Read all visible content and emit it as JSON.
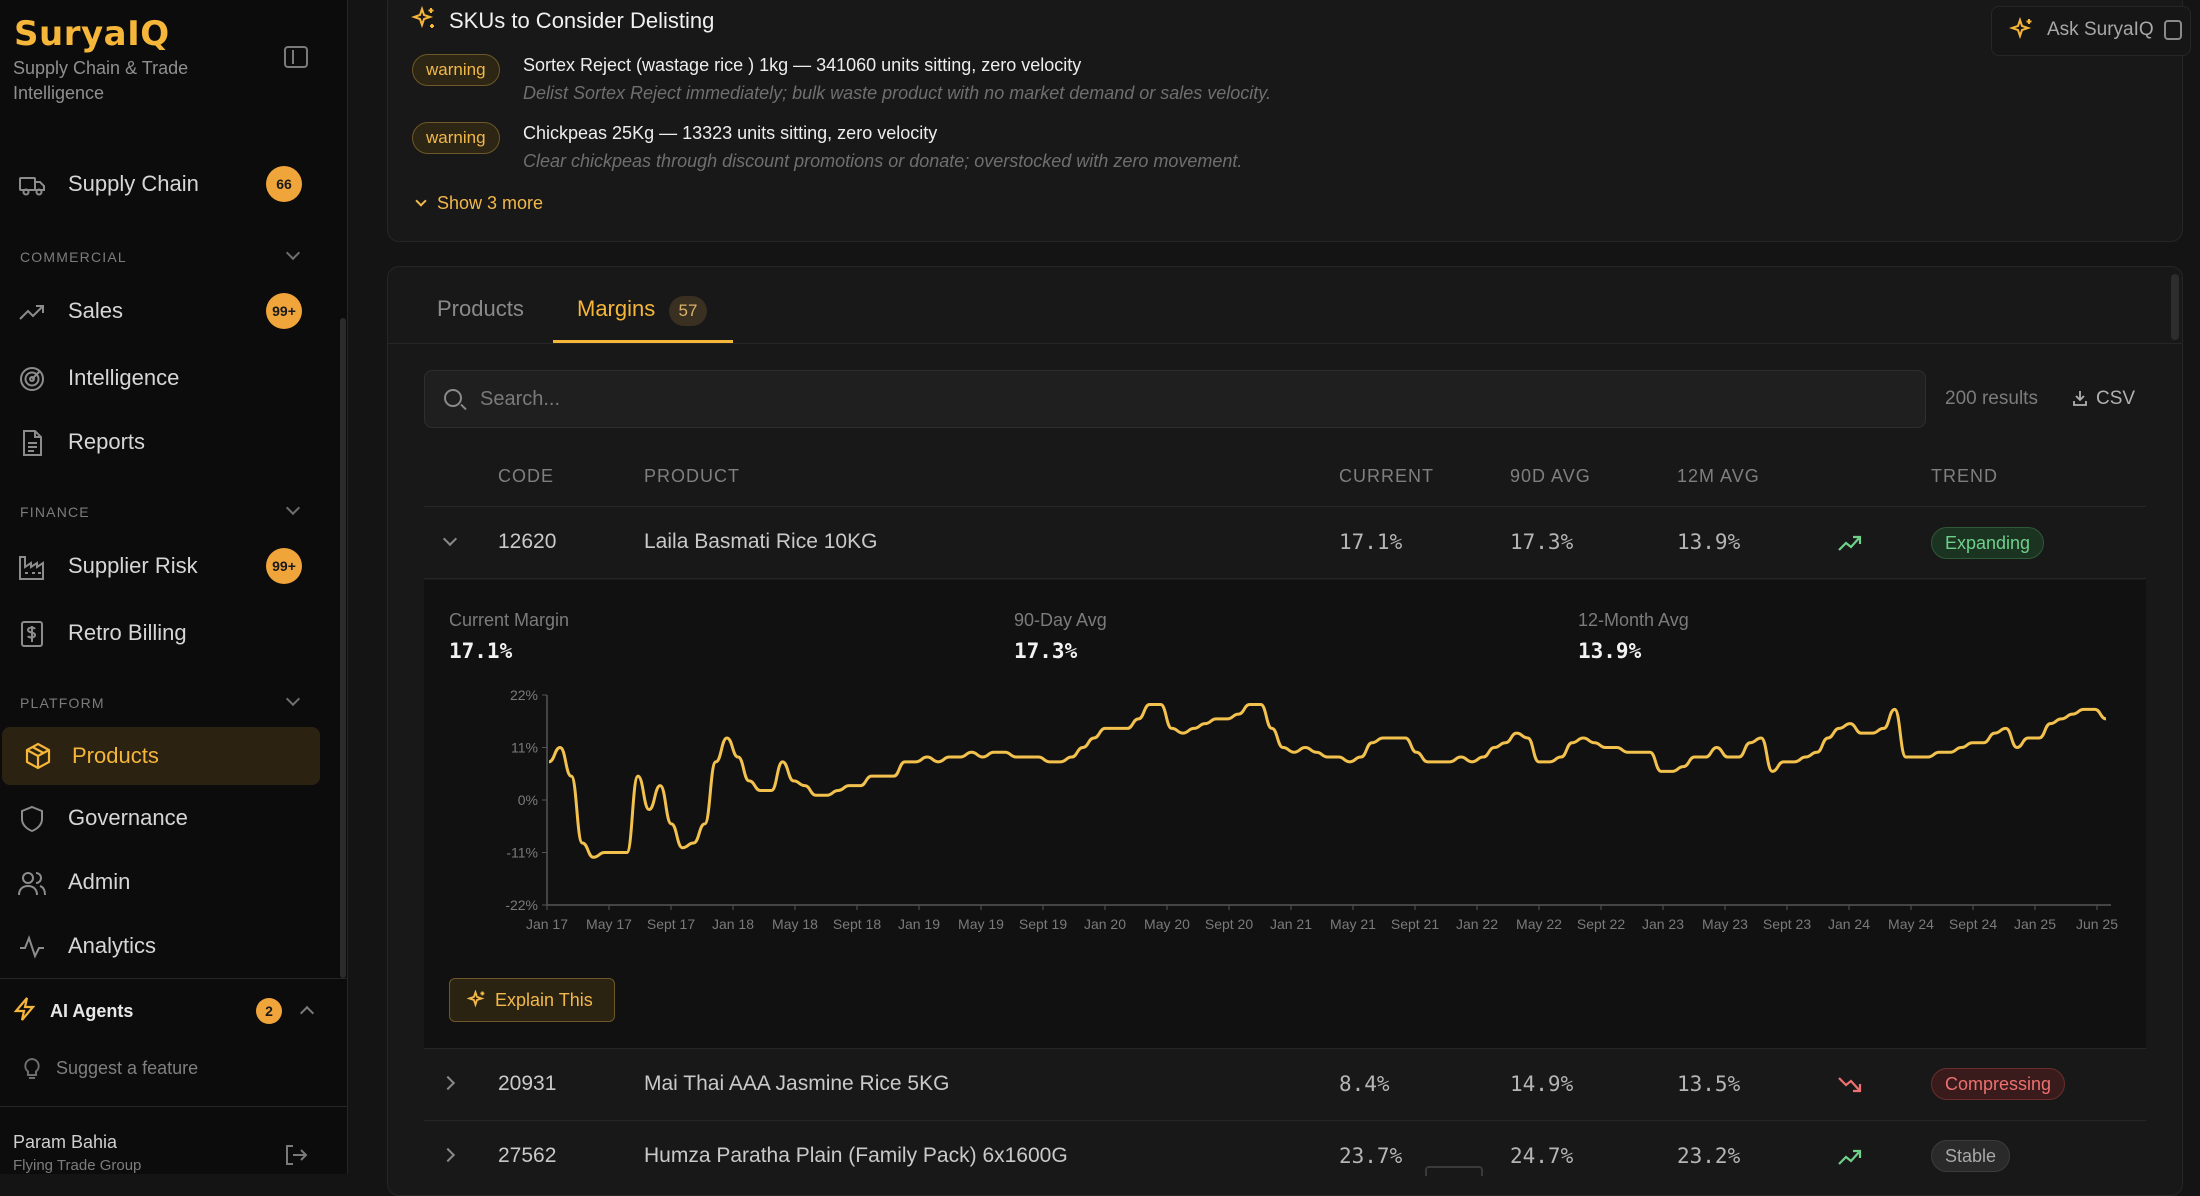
{
  "sidebar": {
    "logo": "SuryaIQ",
    "tagline": "Supply Chain & Trade Intelligence",
    "items": [
      {
        "label": "Supply Chain",
        "badge": "66",
        "icon": "truck-icon"
      },
      {
        "label": "Sales",
        "badge": "99+",
        "icon": "trending-up-icon"
      },
      {
        "label": "Intelligence",
        "icon": "radar-icon"
      },
      {
        "label": "Reports",
        "icon": "document-icon"
      },
      {
        "label": "Supplier Risk",
        "badge": "99+",
        "icon": "factory-icon"
      },
      {
        "label": "Retro Billing",
        "icon": "receipt-dollar-icon"
      },
      {
        "label": "Products",
        "icon": "package-icon"
      },
      {
        "label": "Governance",
        "icon": "shield-icon"
      },
      {
        "label": "Admin",
        "icon": "users-icon"
      },
      {
        "label": "Analytics",
        "icon": "activity-icon"
      }
    ],
    "sections": {
      "commercial": "COMMERCIAL",
      "finance": "FINANCE",
      "platform": "PLATFORM"
    },
    "agents": {
      "label": "AI Agents",
      "count": "2"
    },
    "suggest": "Suggest a feature",
    "user": {
      "name": "Param Bahia",
      "org": "Flying Trade Group"
    }
  },
  "delisting": {
    "title": "SKUs to Consider Delisting",
    "items": [
      {
        "badge": "warning",
        "title": "Sortex Reject (wastage rice ) 1kg — 341060 units sitting, zero velocity",
        "sub": "Delist Sortex Reject immediately; bulk waste product with no market demand or sales velocity."
      },
      {
        "badge": "warning",
        "title": "Chickpeas 25Kg — 13323 units sitting, zero velocity",
        "sub": "Clear chickpeas through discount promotions or donate; overstocked with zero movement."
      }
    ],
    "show_more": "Show 3 more"
  },
  "ask": {
    "label": "Ask SuryaIQ"
  },
  "tabs": {
    "products": "Products",
    "margins": "Margins",
    "margins_count": "57"
  },
  "search": {
    "placeholder": "Search...",
    "results": "200 results",
    "csv": "CSV"
  },
  "table": {
    "headers": {
      "code": "CODE",
      "product": "PRODUCT",
      "current": "CURRENT",
      "avg90": "90D AVG",
      "avg12": "12M AVG",
      "trend": "TREND"
    },
    "rows": [
      {
        "code": "12620",
        "product": "Laila Basmati Rice 10KG",
        "current": "17.1%",
        "avg90": "17.3%",
        "avg12": "13.9%",
        "trend": "Expanding"
      },
      {
        "code": "20931",
        "product": "Mai Thai AAA Jasmine Rice 5KG",
        "current": "8.4%",
        "avg90": "14.9%",
        "avg12": "13.5%",
        "trend": "Compressing"
      },
      {
        "code": "27562",
        "product": "Humza Paratha Plain (Family Pack) 6x1600G",
        "current": "23.7%",
        "avg90": "24.7%",
        "avg12": "23.2%",
        "trend": "Stable"
      }
    ]
  },
  "detail": {
    "current_label": "Current Margin",
    "current_value": "17.1%",
    "avg90_label": "90-Day Avg",
    "avg90_value": "17.3%",
    "avg12_label": "12-Month Avg",
    "avg12_value": "13.9%",
    "explain": "Explain This"
  },
  "colors": {
    "accent": "#f5b63a",
    "line": "#f2c14e",
    "positive": "#6fd08a",
    "negative": "#ee7070"
  },
  "chart_data": {
    "type": "line",
    "xlabel": "",
    "ylabel": "",
    "ylim": [
      -22,
      22
    ],
    "yticks": [
      "22%",
      "11%",
      "0%",
      "-11%",
      "-22%"
    ],
    "ytick_values": [
      22,
      11,
      0,
      -11,
      -22
    ],
    "xticks": [
      "Jan 17",
      "May 17",
      "Sept 17",
      "Jan 18",
      "May 18",
      "Sept 18",
      "Jan 19",
      "May 19",
      "Sept 19",
      "Jan 20",
      "May 20",
      "Sept 20",
      "Jan 21",
      "May 21",
      "Sept 21",
      "Jan 22",
      "May 22",
      "Sept 22",
      "Jan 23",
      "May 23",
      "Sept 23",
      "Jan 24",
      "May 24",
      "Sept 24",
      "Jan 25",
      "Jun 25"
    ],
    "series": [
      {
        "values": [
          8,
          11,
          5,
          -9,
          -12,
          -11,
          -11,
          -11,
          5,
          -2,
          3,
          -5,
          -10,
          -9,
          -5,
          8,
          13,
          9,
          4,
          2,
          2,
          8,
          4,
          3,
          1,
          1,
          2,
          3,
          3,
          5,
          5,
          5,
          8,
          8,
          9,
          8,
          9,
          9,
          10,
          9,
          10,
          10,
          9,
          9,
          9,
          8,
          8,
          9,
          11,
          13,
          15,
          15,
          15,
          17,
          20,
          20,
          15,
          14,
          15,
          16,
          17,
          17,
          18,
          20,
          20,
          15,
          11,
          10,
          11,
          10,
          9,
          9,
          8,
          9,
          12,
          13,
          13,
          13,
          10,
          8,
          8,
          8,
          9,
          8,
          9,
          11,
          12,
          14,
          13,
          8,
          8,
          9,
          12,
          13,
          12,
          11,
          11,
          10,
          10,
          10,
          6,
          6,
          7,
          9,
          9,
          11,
          9,
          9,
          12,
          13,
          6,
          8,
          8,
          9,
          10,
          13,
          15,
          16,
          14,
          14,
          15,
          19,
          9,
          9,
          9,
          10,
          10,
          11,
          12,
          12,
          14,
          15,
          11,
          13,
          13,
          16,
          17,
          18,
          19,
          19,
          17
        ]
      }
    ]
  }
}
